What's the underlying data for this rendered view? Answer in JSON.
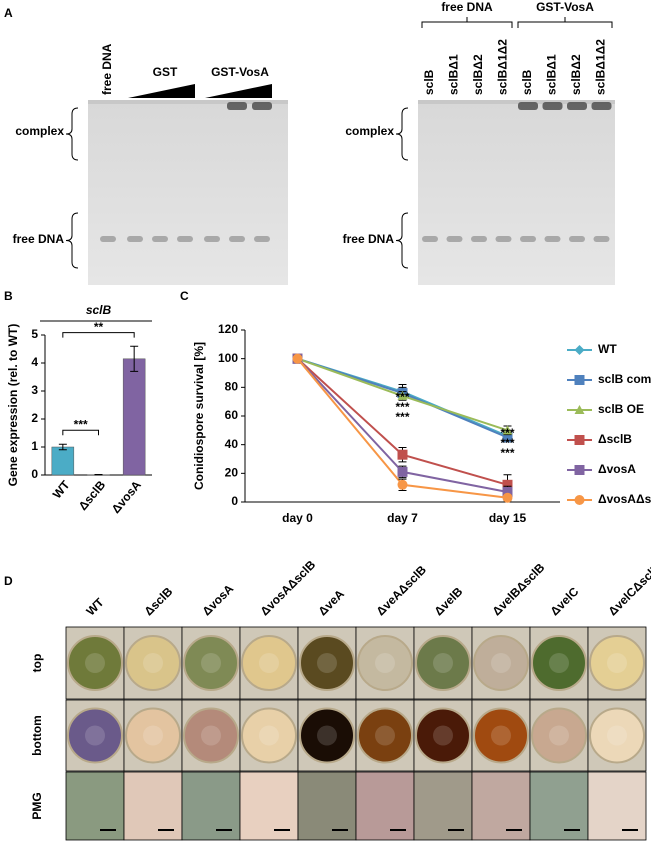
{
  "panel_labels": [
    "A",
    "B",
    "C",
    "D"
  ],
  "gel_left": {
    "lane_label": "free DNA",
    "groups": [
      "GST",
      "GST-VosA"
    ],
    "row_labels": [
      "complex",
      "free DNA"
    ]
  },
  "gel_right": {
    "groups": [
      "free DNA",
      "GST-VosA"
    ],
    "lanes": [
      "sclB",
      "sclBΔ1",
      "sclBΔ2",
      "sclBΔ1Δ2",
      "sclB",
      "sclBΔ1",
      "sclBΔ2",
      "sclBΔ1Δ2"
    ],
    "row_labels": [
      "complex",
      "free DNA"
    ]
  },
  "chart_data": [
    {
      "type": "bar",
      "title": "sclB",
      "y_label": "Gene expression (rel. to WT)",
      "categories": [
        "WT",
        "ΔsclB",
        "ΔvosA"
      ],
      "values": [
        1.0,
        0.01,
        4.15
      ],
      "errors": [
        0.1,
        0.01,
        0.45
      ],
      "colors": [
        "#4bacc6",
        "#8e8e8e",
        "#8064a2"
      ],
      "ylim": [
        0,
        5
      ],
      "yticks": [
        0,
        1,
        2,
        3,
        4,
        5
      ],
      "annotations": [
        {
          "text": "***",
          "from": 0,
          "to": 1
        },
        {
          "text": "**",
          "from": 0,
          "to": 2
        }
      ]
    },
    {
      "type": "line",
      "y_label": "Conidiospore survival [%]",
      "categories": [
        "day 0",
        "day 7",
        "day 15"
      ],
      "ylim": [
        0,
        120
      ],
      "yticks": [
        0,
        20,
        40,
        60,
        80,
        100,
        120
      ],
      "series": [
        {
          "name": "WT",
          "color": "#4bacc6",
          "marker": "diamond",
          "values": [
            100,
            77,
            46
          ],
          "errors": [
            2,
            5,
            3
          ],
          "significance": [
            null,
            null,
            null
          ]
        },
        {
          "name": "sclB comp",
          "color": "#4f81bd",
          "marker": "square",
          "values": [
            100,
            76,
            45
          ],
          "errors": [
            2,
            4,
            3
          ],
          "significance": [
            null,
            null,
            null
          ]
        },
        {
          "name": "sclB OE",
          "color": "#9bbb59",
          "marker": "triangle",
          "values": [
            100,
            74,
            50
          ],
          "errors": [
            2,
            3,
            3
          ],
          "significance": [
            null,
            null,
            null
          ]
        },
        {
          "name": "ΔsclB",
          "color": "#c0504d",
          "marker": "square",
          "values": [
            100,
            33,
            12
          ],
          "errors": [
            2,
            5,
            7
          ],
          "significance": [
            null,
            "***",
            "***"
          ]
        },
        {
          "name": "ΔvosA",
          "color": "#8064a2",
          "marker": "square",
          "values": [
            100,
            21,
            7
          ],
          "errors": [
            2,
            4,
            4
          ],
          "significance": [
            null,
            "***",
            "***"
          ]
        },
        {
          "name": "ΔvosAΔsclB",
          "color": "#f79646",
          "marker": "circle",
          "values": [
            100,
            12,
            3
          ],
          "errors": [
            2,
            4,
            2
          ],
          "significance": [
            null,
            "***",
            "***"
          ]
        }
      ]
    }
  ],
  "plates": {
    "strains": [
      "WT",
      "ΔsclB",
      "ΔvosA",
      "ΔvosAΔsclB",
      "ΔveA",
      "ΔveAΔsclB",
      "ΔvelB",
      "ΔvelBΔsclB",
      "ΔvelC",
      "ΔvelCΔsclB"
    ],
    "rows": [
      "top",
      "bottom",
      "PMG"
    ]
  }
}
